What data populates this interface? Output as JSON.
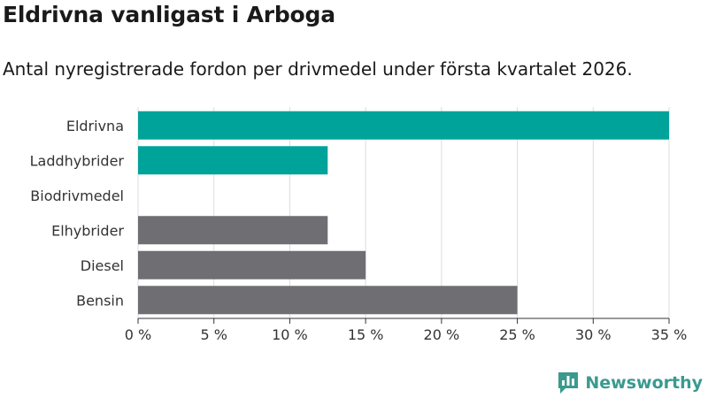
{
  "chart_data": {
    "type": "bar",
    "orientation": "horizontal",
    "title": "Eldrivna vanligast i Arboga",
    "subtitle": "Antal nyregistrerade fordon per drivmedel under första kvartalet 2026.",
    "categories": [
      "Eldrivna",
      "Laddhybrider",
      "Biodrivmedel",
      "Elhybrider",
      "Diesel",
      "Bensin"
    ],
    "values": [
      35,
      12.5,
      0,
      12.5,
      15,
      25
    ],
    "bar_colors": [
      "#00a39a",
      "#00a39a",
      "#00a39a",
      "#6e6e73",
      "#6e6e73",
      "#6e6e73"
    ],
    "xlim": [
      0,
      35
    ],
    "xticks": [
      0,
      5,
      10,
      15,
      20,
      25,
      30,
      35
    ],
    "xtick_labels": [
      "0 %",
      "5 %",
      "10 %",
      "15 %",
      "20 %",
      "25 %",
      "30 %",
      "35 %"
    ],
    "xlabel": "",
    "ylabel": "",
    "grid": true
  },
  "brand": {
    "name": "Newsworthy",
    "icon": "newsworthy-logo-icon",
    "color": "#3a9a8e"
  }
}
